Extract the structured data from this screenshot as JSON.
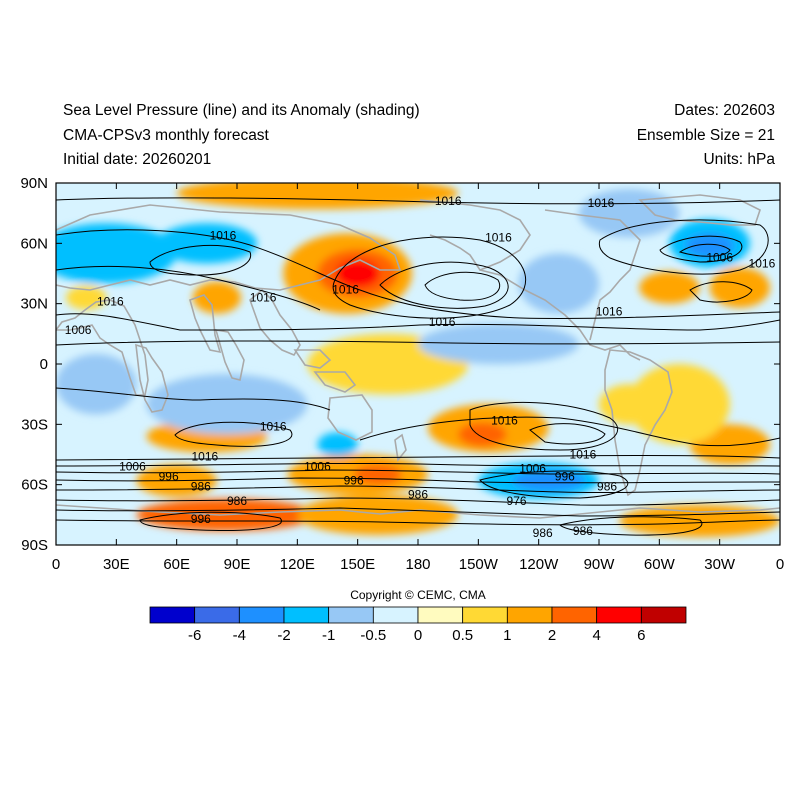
{
  "header": {
    "title_line1": "Sea Level Pressure (line) and its Anomaly (shading)",
    "title_line2": "CMA-CPSv3 monthly forecast",
    "title_line3": "Initial date: 20260201",
    "dates": "Dates: 202603",
    "ensemble": "Ensemble Size = 21",
    "units": "Units: hPa"
  },
  "map": {
    "lat_ticks": [
      "90N",
      "60N",
      "30N",
      "0",
      "30S",
      "60S",
      "90S"
    ],
    "lon_ticks": [
      "0",
      "30E",
      "60E",
      "90E",
      "120E",
      "150E",
      "180",
      "150W",
      "120W",
      "90W",
      "60W",
      "30W",
      "0"
    ],
    "contour_labels": [
      {
        "text": "1016",
        "lon": 195,
        "lat": 81
      },
      {
        "text": "1016",
        "lon": 271,
        "lat": 80
      },
      {
        "text": "1016",
        "lon": 83,
        "lat": 64
      },
      {
        "text": "1016",
        "lon": 220,
        "lat": 63
      },
      {
        "text": "1006",
        "lon": 330,
        "lat": 53
      },
      {
        "text": "1016",
        "lon": 351,
        "lat": 50
      },
      {
        "text": "1016",
        "lon": 144,
        "lat": 37
      },
      {
        "text": "1016",
        "lon": 103,
        "lat": 33
      },
      {
        "text": "1016",
        "lon": 27,
        "lat": 31
      },
      {
        "text": "1016",
        "lon": 275,
        "lat": 26
      },
      {
        "text": "1016",
        "lon": 192,
        "lat": 21
      },
      {
        "text": "1006",
        "lon": 11,
        "lat": 17
      },
      {
        "text": "1016",
        "lon": 108,
        "lat": -31
      },
      {
        "text": "1016",
        "lon": 223,
        "lat": -28
      },
      {
        "text": "1016",
        "lon": 262,
        "lat": -45
      },
      {
        "text": "1016",
        "lon": 74,
        "lat": -46
      },
      {
        "text": "1006",
        "lon": 38,
        "lat": -51
      },
      {
        "text": "1006",
        "lon": 130,
        "lat": -51
      },
      {
        "text": "1006",
        "lon": 237,
        "lat": -52
      },
      {
        "text": "996",
        "lon": 56,
        "lat": -56
      },
      {
        "text": "996",
        "lon": 148,
        "lat": -58
      },
      {
        "text": "996",
        "lon": 253,
        "lat": -56
      },
      {
        "text": "986",
        "lon": 72,
        "lat": -61
      },
      {
        "text": "986",
        "lon": 180,
        "lat": -65
      },
      {
        "text": "986",
        "lon": 274,
        "lat": -61
      },
      {
        "text": "986",
        "lon": 90,
        "lat": -68
      },
      {
        "text": "976",
        "lon": 229,
        "lat": -68
      },
      {
        "text": "996",
        "lon": 72,
        "lat": -77
      },
      {
        "text": "986",
        "lon": 262,
        "lat": -83
      },
      {
        "text": "986",
        "lon": 242,
        "lat": -84
      }
    ],
    "anomaly_features": [
      {
        "lon": 145,
        "lat": 45,
        "rx": 32,
        "ry": 20,
        "value": 1.5
      },
      {
        "lon": 150,
        "lat": 45,
        "rx": 20,
        "ry": 12,
        "value": 3
      },
      {
        "lon": 150,
        "lat": 45,
        "rx": 11,
        "ry": 7,
        "value": 5
      },
      {
        "lon": 25,
        "lat": 55,
        "rx": 35,
        "ry": 15,
        "value": -1.5
      },
      {
        "lon": 75,
        "lat": 60,
        "rx": 25,
        "ry": 10,
        "value": -1.5
      },
      {
        "lon": 325,
        "lat": 60,
        "rx": 20,
        "ry": 12,
        "value": -1.5
      },
      {
        "lon": 325,
        "lat": 59,
        "rx": 12,
        "ry": 6,
        "value": -3
      },
      {
        "lon": 305,
        "lat": 38,
        "rx": 15,
        "ry": 8,
        "value": 1.5
      },
      {
        "lon": 340,
        "lat": 38,
        "rx": 15,
        "ry": 10,
        "value": 1.5
      },
      {
        "lon": 80,
        "lat": 33,
        "rx": 12,
        "ry": 8,
        "value": 1.5
      },
      {
        "lon": 130,
        "lat": 85,
        "rx": 70,
        "ry": 8,
        "value": 1.5
      },
      {
        "lon": 15,
        "lat": 33,
        "rx": 10,
        "ry": 6,
        "value": 0.7
      },
      {
        "lon": 215,
        "lat": -32,
        "rx": 30,
        "ry": 12,
        "value": 1.5
      },
      {
        "lon": 212,
        "lat": -35,
        "rx": 12,
        "ry": 6,
        "value": 3
      },
      {
        "lon": 75,
        "lat": -36,
        "rx": 30,
        "ry": 8,
        "value": 1.5
      },
      {
        "lon": 240,
        "lat": -58,
        "rx": 30,
        "ry": 9,
        "value": -1.5
      },
      {
        "lon": 245,
        "lat": -58,
        "rx": 18,
        "ry": 5,
        "value": -3
      },
      {
        "lon": 150,
        "lat": -55,
        "rx": 35,
        "ry": 10,
        "value": 1.5
      },
      {
        "lon": 160,
        "lat": -55,
        "rx": 12,
        "ry": 5,
        "value": 3
      },
      {
        "lon": 60,
        "lat": -58,
        "rx": 20,
        "ry": 8,
        "value": 1.5
      },
      {
        "lon": 335,
        "lat": -40,
        "rx": 20,
        "ry": 10,
        "value": 1.5
      },
      {
        "lon": 85,
        "lat": -75,
        "rx": 45,
        "ry": 8,
        "value": 3
      },
      {
        "lon": 160,
        "lat": -75,
        "rx": 40,
        "ry": 10,
        "value": 1.5
      },
      {
        "lon": 320,
        "lat": -78,
        "rx": 40,
        "ry": 8,
        "value": 1.5
      },
      {
        "lon": 285,
        "lat": -20,
        "rx": 15,
        "ry": 10,
        "value": 0.7
      },
      {
        "lon": 165,
        "lat": 0,
        "rx": 40,
        "ry": 15,
        "value": 0.7
      },
      {
        "lon": 310,
        "lat": -20,
        "rx": 25,
        "ry": 20,
        "value": 0.7
      },
      {
        "lon": 85,
        "lat": -20,
        "rx": 40,
        "ry": 15,
        "value": -0.7
      },
      {
        "lon": 220,
        "lat": 10,
        "rx": 40,
        "ry": 10,
        "value": -0.7
      },
      {
        "lon": 20,
        "lat": -10,
        "rx": 20,
        "ry": 15,
        "value": -0.7
      },
      {
        "lon": 250,
        "lat": 40,
        "rx": 20,
        "ry": 15,
        "value": -0.7
      },
      {
        "lon": 285,
        "lat": 75,
        "rx": 25,
        "ry": 12,
        "value": -0.7
      },
      {
        "lon": 140,
        "lat": -40,
        "rx": 10,
        "ry": 6,
        "value": -1.5
      }
    ]
  },
  "copyright": "Copyright © CEMC, CMA",
  "colorbar": {
    "colors": [
      "#0000cd",
      "#3a6be8",
      "#1e90ff",
      "#00bfff",
      "#97c8f5",
      "#d7f3ff",
      "#fffbbf",
      "#ffd934",
      "#ffa500",
      "#ff6400",
      "#ff0000",
      "#c00000"
    ],
    "labels": [
      "-6",
      "-4",
      "-2",
      "-1",
      "-0.5",
      "0",
      "0.5",
      "1",
      "2",
      "4",
      "6"
    ]
  }
}
